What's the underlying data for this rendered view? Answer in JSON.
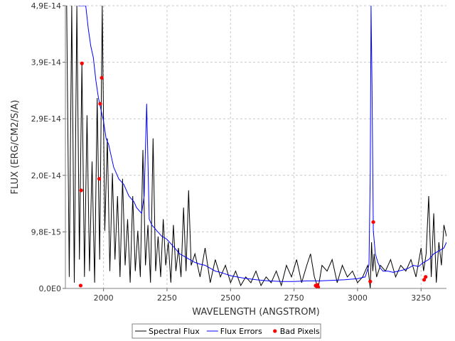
{
  "chart_data": {
    "type": "line",
    "xlabel": "WAVELENGTH (ANGSTROM)",
    "ylabel": "FLUX (ERG/CM2/S/A)",
    "xlim": [
      1850,
      3350
    ],
    "ylim": [
      0,
      4.9e-14
    ],
    "x_ticks": [
      2000,
      2250,
      2500,
      2750,
      3000,
      3250
    ],
    "x_tick_labels": [
      "2000",
      "2250",
      "2500",
      "2750",
      "3000",
      "3250"
    ],
    "y_ticks": [
      0,
      9.8e-15,
      1.96e-14,
      2.94e-14,
      3.92e-14,
      4.9e-14
    ],
    "y_tick_labels": [
      "0,0E0",
      "9,8E-15",
      "2,0E-14",
      "2,9E-14",
      "3,9E-14",
      "4,9E-14"
    ],
    "grid": true,
    "legend_position": "bottom",
    "series": [
      {
        "name": "Spectral Flux",
        "color": "#000000",
        "x": [
          1855,
          1865,
          1875,
          1885,
          1895,
          1905,
          1915,
          1925,
          1935,
          1945,
          1955,
          1965,
          1975,
          1985,
          1995,
          2005,
          2015,
          2025,
          2035,
          2045,
          2055,
          2065,
          2075,
          2085,
          2095,
          2105,
          2115,
          2125,
          2135,
          2145,
          2155,
          2165,
          2175,
          2185,
          2195,
          2205,
          2215,
          2225,
          2235,
          2245,
          2255,
          2265,
          2275,
          2285,
          2295,
          2305,
          2315,
          2325,
          2335,
          2345,
          2360,
          2380,
          2400,
          2420,
          2440,
          2460,
          2480,
          2500,
          2520,
          2540,
          2560,
          2580,
          2600,
          2620,
          2640,
          2660,
          2680,
          2700,
          2720,
          2740,
          2760,
          2780,
          2800,
          2815,
          2830,
          2845,
          2860,
          2880,
          2900,
          2920,
          2940,
          2960,
          2980,
          3000,
          3020,
          3040,
          3050,
          3055,
          3060,
          3065,
          3075,
          3090,
          3110,
          3130,
          3150,
          3170,
          3190,
          3210,
          3230,
          3250,
          3260,
          3270,
          3280,
          3290,
          3300,
          3310,
          3320,
          3330,
          3340,
          3350
        ],
        "values": [
          4.9e-14,
          2e-15,
          4.9e-14,
          1e-15,
          4.9e-14,
          5e-15,
          3.9e-14,
          2e-15,
          3e-14,
          3e-15,
          2.2e-14,
          1e-15,
          3.3e-14,
          5e-15,
          4.9e-14,
          1e-14,
          2.6e-14,
          3e-15,
          2e-14,
          5e-15,
          1.6e-14,
          2e-15,
          1.9e-14,
          4e-15,
          1.2e-14,
          1e-15,
          1.6e-14,
          3e-15,
          1e-14,
          2e-15,
          2.4e-14,
          4e-15,
          1.1e-14,
          1e-15,
          2.6e-14,
          3e-15,
          9e-15,
          2e-15,
          1.2e-14,
          4e-15,
          8e-15,
          1e-15,
          1.1e-14,
          3e-15,
          7e-15,
          2e-15,
          1.4e-14,
          3e-15,
          1.7e-14,
          4e-15,
          6e-15,
          2e-15,
          7e-15,
          1e-15,
          5e-15,
          2e-15,
          4e-15,
          1e-15,
          3e-15,
          5e-16,
          2e-15,
          1e-15,
          3e-15,
          5e-16,
          2e-15,
          1e-15,
          3e-15,
          5e-16,
          4e-15,
          2e-15,
          5e-15,
          1e-15,
          4e-15,
          6e-15,
          2e-15,
          0.0,
          4e-15,
          3e-15,
          5e-15,
          1e-15,
          4e-15,
          2e-15,
          3e-15,
          1e-15,
          2e-15,
          4e-15,
          0.0,
          8e-15,
          3e-15,
          6e-15,
          2e-15,
          4e-15,
          3e-15,
          5e-15,
          2e-15,
          4e-15,
          3e-15,
          5e-15,
          2e-15,
          7e-15,
          3e-15,
          6e-15,
          1.6e-14,
          2e-15,
          1.3e-14,
          1e-15,
          8e-15,
          4e-15,
          1.1e-14,
          9e-15
        ]
      },
      {
        "name": "Flux Errors",
        "color": "#0000ff",
        "x": [
          1900,
          1910,
          1920,
          1930,
          1940,
          1950,
          1960,
          1970,
          1980,
          1990,
          2000,
          2010,
          2020,
          2030,
          2040,
          2050,
          2060,
          2070,
          2080,
          2090,
          2100,
          2110,
          2120,
          2130,
          2140,
          2150,
          2160,
          2170,
          2180,
          2190,
          2200,
          2210,
          2220,
          2230,
          2240,
          2250,
          2260,
          2270,
          2280,
          2290,
          2300,
          2320,
          2340,
          2360,
          2380,
          2400,
          2420,
          2440,
          2460,
          2480,
          2500,
          2550,
          2600,
          2650,
          2700,
          2750,
          2800,
          2850,
          2900,
          2950,
          3000,
          3030,
          3045,
          3050,
          3053,
          3057,
          3062,
          3070,
          3080,
          3090,
          3100,
          3120,
          3140,
          3160,
          3180,
          3200,
          3220,
          3240,
          3260,
          3280,
          3300,
          3320,
          3340,
          3350
        ],
        "values": [
          4.9e-14,
          4.9e-14,
          4.9e-14,
          4.9e-14,
          4.5e-14,
          4.2e-14,
          4e-14,
          3.6e-14,
          3.3e-14,
          3.1e-14,
          2.9e-14,
          2.6e-14,
          2.5e-14,
          2.3e-14,
          2.1e-14,
          2e-14,
          1.9e-14,
          1.85e-14,
          1.8e-14,
          1.7e-14,
          1.6e-14,
          1.55e-14,
          1.5e-14,
          1.4e-14,
          1.35e-14,
          1.3e-14,
          1.6e-14,
          3.2e-14,
          1.2e-14,
          1.1e-14,
          1.05e-14,
          1e-14,
          9.5e-15,
          9e-15,
          8.8e-15,
          8.5e-15,
          8e-15,
          7.5e-15,
          7e-15,
          6.5e-15,
          6e-15,
          5.5e-15,
          5e-15,
          4.5e-15,
          4.2e-15,
          4e-15,
          3.5e-15,
          3e-15,
          2.8e-15,
          2.5e-15,
          2.2e-15,
          1.8e-15,
          1.5e-15,
          1.3e-15,
          1.2e-15,
          1.2e-15,
          1.3e-15,
          1.3e-15,
          1.4e-15,
          1.5e-15,
          1.7e-15,
          2e-15,
          4e-15,
          2e-14,
          4.9e-14,
          3.5e-14,
          1e-14,
          6e-15,
          4.5e-15,
          3.5e-15,
          3e-15,
          3e-15,
          2.8e-15,
          3e-15,
          3.2e-15,
          3.5e-15,
          4e-15,
          3.8e-15,
          4.5e-15,
          5e-15,
          6e-15,
          6.5e-15,
          7e-15,
          8e-15
        ]
      },
      {
        "name": "Bad Pixels",
        "color": "#ff0000",
        "type": "scatter",
        "x": [
          1910,
          1912,
          1915,
          1983,
          1987,
          1993,
          2835,
          2840,
          2842,
          2845,
          3050,
          3062,
          3262,
          3268
        ],
        "values": [
          5e-16,
          1.7e-14,
          3.9e-14,
          1.9e-14,
          3.2e-14,
          3.65e-14,
          5e-16,
          3e-16,
          6e-16,
          2e-16,
          1.2e-15,
          1.15e-14,
          1.5e-15,
          2e-15
        ]
      }
    ]
  }
}
